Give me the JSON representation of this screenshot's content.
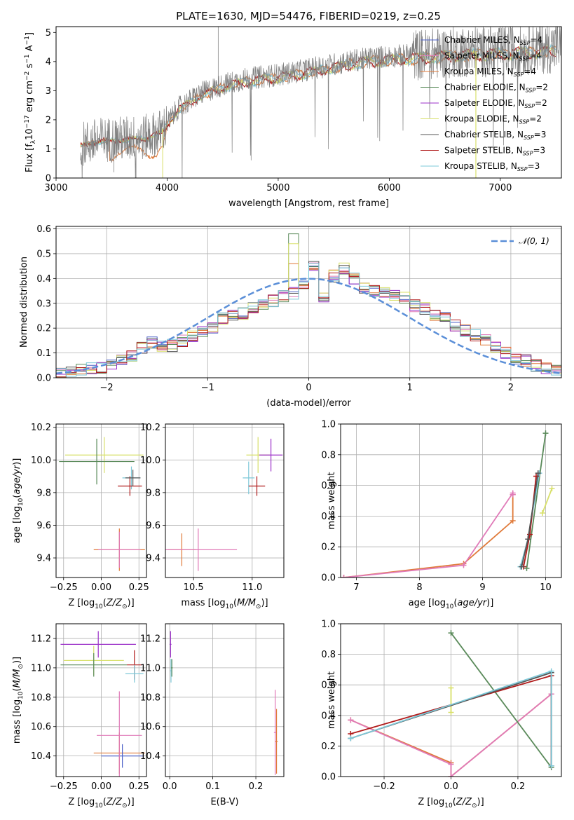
{
  "figure": {
    "title": "PLATE=1630, MJD=54476, FIBERID=0219, z=0.25"
  },
  "colors": {
    "chabrier_miles": "#4f63c8",
    "salpeter_miles": "#e07ab8",
    "kroupa_miles": "#e07a3a",
    "chabrier_elodie": "#5a8a5a",
    "salpeter_elodie": "#9b30c8",
    "kroupa_elodie": "#d8e06a",
    "chabrier_stelib": "#555555",
    "salpeter_stelib": "#b01a1a",
    "kroupa_stelib": "#7ec8d8",
    "normal": "#5b8fd8",
    "grid": "#b0b0b0"
  },
  "chart_data": [
    {
      "id": "spectrum",
      "type": "line",
      "title": "PLATE=1630, MJD=54476, FIBERID=0219, z=0.25",
      "xlabel": "wavelength [Angstrom, rest frame]",
      "ylabel": "Flux [f_λ 10^-17 erg cm^-2 s^-1 A^-1]",
      "xlim": [
        3000,
        7550
      ],
      "ylim": [
        0,
        5.2
      ],
      "xticks": [
        "3000",
        "4000",
        "5000",
        "6000",
        "7000"
      ],
      "yticks": [
        "0",
        "1",
        "2",
        "3",
        "4",
        "5"
      ],
      "grid": false,
      "legend_position": "top-right",
      "legend": [
        {
          "label": "Chabrier MILES, N",
          "sub": "SSP",
          "suffix": "=4",
          "color_key": "chabrier_miles"
        },
        {
          "label": "Salpeter MILES, N",
          "sub": "SSP",
          "suffix": "=4",
          "color_key": "salpeter_miles"
        },
        {
          "label": "Kroupa MILES, N",
          "sub": "SSP",
          "suffix": "=4",
          "color_key": "kroupa_miles"
        },
        {
          "label": "Chabrier ELODIE, N",
          "sub": "SSP",
          "suffix": "=2",
          "color_key": "chabrier_elodie"
        },
        {
          "label": "Salpeter ELODIE, N",
          "sub": "SSP",
          "suffix": "=2",
          "color_key": "salpeter_elodie"
        },
        {
          "label": "Kroupa ELODIE, N",
          "sub": "SSP",
          "suffix": "=2",
          "color_key": "kroupa_elodie"
        },
        {
          "label": "Chabrier STELIB, N",
          "sub": "SSP",
          "suffix": "=3",
          "color_key": "chabrier_stelib"
        },
        {
          "label": "Salpeter STELIB, N",
          "sub": "SSP",
          "suffix": "=3",
          "color_key": "salpeter_stelib"
        },
        {
          "label": "Kroupa STELIB, N",
          "sub": "SSP",
          "suffix": "=3",
          "color_key": "kroupa_stelib"
        }
      ],
      "data_envelope": {
        "wavelength": [
          3220,
          3400,
          3600,
          3800,
          3950,
          4100,
          4300,
          4500,
          4700,
          4900,
          5100,
          5300,
          5500,
          5700,
          5900,
          6100,
          6300,
          6500,
          6700,
          6900,
          7100,
          7300,
          7550
        ],
        "flux": [
          1.15,
          1.3,
          1.35,
          1.4,
          1.6,
          2.4,
          2.9,
          3.2,
          3.4,
          3.5,
          3.6,
          3.75,
          3.9,
          4.05,
          4.15,
          4.2,
          4.25,
          4.3,
          4.35,
          4.35,
          4.4,
          4.45,
          4.5
        ]
      }
    },
    {
      "id": "residuals",
      "type": "histogram",
      "xlabel": "(data-model)/error",
      "ylabel": "Normed distribution",
      "xlim": [
        -2.5,
        2.5
      ],
      "ylim": [
        0,
        0.61
      ],
      "xticks": [
        "−2",
        "−1",
        "0",
        "1",
        "2"
      ],
      "yticks": [
        "0.0",
        "0.1",
        "0.2",
        "0.3",
        "0.4",
        "0.5",
        "0.6"
      ],
      "grid": true,
      "legend_position": "top-right",
      "legend": [
        {
          "label": "𝒩(0, 1)",
          "color_key": "normal"
        }
      ],
      "bin_width": 0.1,
      "bin_start": -2.5,
      "heights": [
        0.02,
        0.02,
        0.03,
        0.04,
        0.04,
        0.05,
        0.07,
        0.09,
        0.12,
        0.14,
        0.13,
        0.13,
        0.15,
        0.17,
        0.19,
        0.2,
        0.24,
        0.25,
        0.26,
        0.28,
        0.3,
        0.31,
        0.33,
        0.34,
        0.37,
        0.45,
        0.33,
        0.41,
        0.44,
        0.4,
        0.36,
        0.35,
        0.34,
        0.33,
        0.32,
        0.29,
        0.28,
        0.25,
        0.24,
        0.21,
        0.19,
        0.17,
        0.15,
        0.12,
        0.1,
        0.08,
        0.07,
        0.05,
        0.04,
        0.03
      ],
      "normal_curve": {
        "mean": 0,
        "sigma": 1
      }
    },
    {
      "id": "z-age",
      "type": "errorbar",
      "xlabel": "Z [log10(Z/Z⊙)]",
      "ylabel": "age [log10(age/yr)]",
      "xlim": [
        -0.3,
        0.3
      ],
      "ylim": [
        9.28,
        10.22
      ],
      "xticks": [
        "−0.25",
        "0.00",
        "0.25"
      ],
      "yticks": [
        "9.4",
        "9.6",
        "9.8",
        "10.0",
        "10.2"
      ],
      "grid": true,
      "points": [
        {
          "x": 0.12,
          "xerr": 0.17,
          "y": 9.45,
          "yerr": 0.13,
          "color_key": "kroupa_miles"
        },
        {
          "x": 0.12,
          "xerr": 0.14,
          "y": 9.45,
          "yerr": 0.11,
          "color_key": "salpeter_miles"
        },
        {
          "x": 0.02,
          "xerr": 0.26,
          "y": 10.03,
          "yerr": 0.11,
          "color_key": "kroupa_elodie"
        },
        {
          "x": -0.03,
          "xerr": 0.25,
          "y": 9.99,
          "yerr": 0.14,
          "color_key": "chabrier_elodie"
        },
        {
          "x": 0.2,
          "xerr": 0.06,
          "y": 9.89,
          "yerr": 0.07,
          "color_key": "kroupa_stelib"
        },
        {
          "x": 0.19,
          "xerr": 0.08,
          "y": 9.84,
          "yerr": 0.06,
          "color_key": "salpeter_stelib"
        },
        {
          "x": 0.21,
          "xerr": 0.05,
          "y": 9.89,
          "yerr": 0.05,
          "color_key": "chabrier_stelib"
        }
      ]
    },
    {
      "id": "mass-age",
      "type": "errorbar",
      "xlabel": "mass [log10(M/M⊙)]",
      "ylabel": "",
      "xlim": [
        10.26,
        11.27
      ],
      "ylim": [
        9.28,
        10.22
      ],
      "xticks": [
        "10.5",
        "11.0"
      ],
      "yticks": [
        "9.4",
        "9.6",
        "9.8",
        "10.0",
        "10.2"
      ],
      "grid": true,
      "points": [
        {
          "x": 10.4,
          "xerr": 0.12,
          "y": 9.45,
          "yerr": 0.1,
          "color_key": "kroupa_miles"
        },
        {
          "x": 10.54,
          "xerr": 0.33,
          "y": 9.45,
          "yerr": 0.13,
          "color_key": "salpeter_miles"
        },
        {
          "x": 11.05,
          "xerr": 0.1,
          "y": 10.03,
          "yerr": 0.11,
          "color_key": "kroupa_elodie"
        },
        {
          "x": 11.16,
          "xerr": 0.1,
          "y": 10.03,
          "yerr": 0.1,
          "color_key": "salpeter_elodie"
        },
        {
          "x": 10.97,
          "xerr": 0.05,
          "y": 9.89,
          "yerr": 0.1,
          "color_key": "kroupa_stelib"
        },
        {
          "x": 11.04,
          "xerr": 0.07,
          "y": 9.84,
          "yerr": 0.06,
          "color_key": "salpeter_stelib"
        }
      ]
    },
    {
      "id": "age-weight",
      "type": "line",
      "xlabel": "age [log10(age/yr)]",
      "ylabel": "mass weight",
      "xlim": [
        6.75,
        10.25
      ],
      "ylim": [
        0,
        1.0
      ],
      "xticks": [
        "7",
        "8",
        "9",
        "10"
      ],
      "yticks": [
        "0.0",
        "0.2",
        "0.4",
        "0.6",
        "0.8",
        "1.0"
      ],
      "grid": true,
      "series": [
        {
          "color_key": "kroupa_miles",
          "x": [
            6.8,
            8.7,
            9.48,
            9.48
          ],
          "y": [
            0.0,
            0.09,
            0.37,
            0.54
          ]
        },
        {
          "color_key": "salpeter_miles",
          "x": [
            6.8,
            8.7,
            9.48,
            9.48
          ],
          "y": [
            0.0,
            0.08,
            0.55,
            0.54
          ]
        },
        {
          "color_key": "chabrier_elodie",
          "x": [
            9.7,
            10.0
          ],
          "y": [
            0.06,
            0.94
          ]
        },
        {
          "color_key": "kroupa_elodie",
          "x": [
            9.95,
            10.1
          ],
          "y": [
            0.42,
            0.58
          ]
        },
        {
          "color_key": "kroupa_stelib",
          "x": [
            9.6,
            9.72,
            9.9
          ],
          "y": [
            0.07,
            0.25,
            0.68
          ]
        },
        {
          "color_key": "salpeter_stelib",
          "x": [
            9.65,
            9.75,
            9.85
          ],
          "y": [
            0.07,
            0.28,
            0.66
          ]
        },
        {
          "color_key": "chabrier_stelib",
          "x": [
            9.62,
            9.72,
            9.88
          ],
          "y": [
            0.07,
            0.25,
            0.68
          ]
        }
      ]
    },
    {
      "id": "z-mass",
      "type": "errorbar",
      "xlabel": "Z [log10(Z/Z⊙)]",
      "ylabel": "mass [log10(M/M⊙)]",
      "xlim": [
        -0.3,
        0.3
      ],
      "ylim": [
        10.26,
        11.3
      ],
      "xticks": [
        "−0.25",
        "0.00",
        "0.25"
      ],
      "yticks": [
        "10.4",
        "10.6",
        "10.8",
        "11.0",
        "11.2"
      ],
      "grid": true,
      "points": [
        {
          "x": 0.12,
          "xerr": 0.17,
          "y": 10.42,
          "yerr": 0.14,
          "color_key": "kroupa_miles"
        },
        {
          "x": 0.14,
          "xerr": 0.14,
          "y": 10.4,
          "yerr": 0.08,
          "color_key": "chabrier_miles"
        },
        {
          "x": 0.12,
          "xerr": 0.15,
          "y": 10.54,
          "yerr": 0.3,
          "color_key": "salpeter_miles"
        },
        {
          "x": -0.02,
          "xerr": 0.25,
          "y": 11.16,
          "yerr": 0.09,
          "color_key": "salpeter_elodie"
        },
        {
          "x": -0.05,
          "xerr": 0.2,
          "y": 11.05,
          "yerr": 0.1,
          "color_key": "kroupa_elodie"
        },
        {
          "x": -0.05,
          "xerr": 0.22,
          "y": 11.02,
          "yerr": 0.08,
          "color_key": "chabrier_elodie"
        },
        {
          "x": 0.22,
          "xerr": 0.05,
          "y": 11.02,
          "yerr": 0.1,
          "color_key": "salpeter_stelib"
        },
        {
          "x": 0.22,
          "xerr": 0.06,
          "y": 10.96,
          "yerr": 0.06,
          "color_key": "kroupa_stelib"
        }
      ]
    },
    {
      "id": "ebv-mass",
      "type": "errorbar",
      "xlabel": "E(B-V)",
      "ylabel": "",
      "xlim": [
        -0.01,
        0.265
      ],
      "ylim": [
        10.26,
        11.3
      ],
      "xticks": [
        "0.0",
        "0.1",
        "0.2"
      ],
      "yticks": [
        "10.4",
        "10.6",
        "10.8",
        "11.0",
        "11.2"
      ],
      "grid": true,
      "points": [
        {
          "x": 0.002,
          "xerr": 0.002,
          "y": 11.16,
          "yerr": 0.09,
          "color_key": "salpeter_elodie"
        },
        {
          "x": 0.003,
          "xerr": 0.002,
          "y": 10.98,
          "yerr": 0.08,
          "color_key": "kroupa_stelib"
        },
        {
          "x": 0.005,
          "xerr": 0.002,
          "y": 11.0,
          "yerr": 0.06,
          "color_key": "chabrier_elodie"
        },
        {
          "x": 0.245,
          "xerr": 0.003,
          "y": 10.56,
          "yerr": 0.29,
          "color_key": "salpeter_miles"
        },
        {
          "x": 0.248,
          "xerr": 0.003,
          "y": 10.5,
          "yerr": 0.22,
          "color_key": "kroupa_miles"
        }
      ]
    },
    {
      "id": "z-weight",
      "type": "line",
      "xlabel": "Z [log10(Z/Z⊙)]",
      "ylabel": "mass weight",
      "xlim": [
        -0.33,
        0.33
      ],
      "ylim": [
        0,
        1.0
      ],
      "xticks": [
        "−0.2",
        "0.0",
        "0.2"
      ],
      "yticks": [
        "0.0",
        "0.2",
        "0.4",
        "0.6",
        "0.8",
        "1.0"
      ],
      "grid": true,
      "series": [
        {
          "color_key": "kroupa_miles",
          "x": [
            -0.3,
            0.0,
            0.0,
            0.3
          ],
          "y": [
            0.37,
            0.09,
            0.0,
            0.54
          ]
        },
        {
          "color_key": "salpeter_miles",
          "x": [
            -0.3,
            0.0,
            0.0,
            0.3
          ],
          "y": [
            0.37,
            0.08,
            0.0,
            0.54
          ]
        },
        {
          "color_key": "chabrier_elodie",
          "x": [
            0.0,
            0.3
          ],
          "y": [
            0.94,
            0.06
          ]
        },
        {
          "color_key": "kroupa_elodie",
          "x": [
            0.0,
            0.0
          ],
          "y": [
            0.42,
            0.58
          ]
        },
        {
          "color_key": "salpeter_stelib",
          "x": [
            -0.3,
            0.3,
            0.3
          ],
          "y": [
            0.28,
            0.66,
            0.07
          ]
        },
        {
          "color_key": "chabrier_stelib",
          "x": [
            -0.3,
            0.3,
            0.3
          ],
          "y": [
            0.25,
            0.68,
            0.07
          ]
        },
        {
          "color_key": "kroupa_stelib",
          "x": [
            -0.3,
            0.3,
            0.3
          ],
          "y": [
            0.25,
            0.69,
            0.07
          ]
        }
      ]
    }
  ]
}
